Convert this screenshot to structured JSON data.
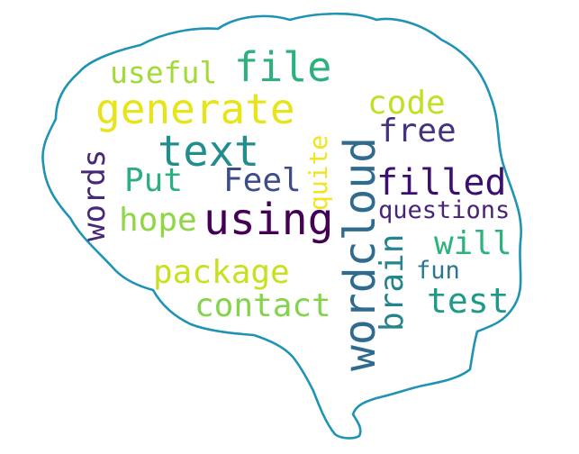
{
  "outline_color": "#1f93b5",
  "words": [
    {
      "text": "useful",
      "color": "#a2da37"
    },
    {
      "text": "file",
      "color": "#2cb17e"
    },
    {
      "text": "generate",
      "color": "#e7e419"
    },
    {
      "text": "code",
      "color": "#c2df23"
    },
    {
      "text": "text",
      "color": "#218e8d"
    },
    {
      "text": "free",
      "color": "#46337e"
    },
    {
      "text": "wordcloud",
      "color": "#2f6b8e"
    },
    {
      "text": "quite",
      "color": "#f1e51d"
    },
    {
      "text": "words",
      "color": "#482878"
    },
    {
      "text": "Put",
      "color": "#2ab07f"
    },
    {
      "text": "Feel",
      "color": "#3e4c8a"
    },
    {
      "text": "filled",
      "color": "#3b0f70"
    },
    {
      "text": "hope",
      "color": "#8fd744"
    },
    {
      "text": "using",
      "color": "#440154"
    },
    {
      "text": "questions",
      "color": "#482475"
    },
    {
      "text": "brain",
      "color": "#25858e"
    },
    {
      "text": "will",
      "color": "#2db27d"
    },
    {
      "text": "package",
      "color": "#c8e020"
    },
    {
      "text": "fun",
      "color": "#2a788e"
    },
    {
      "text": "contact",
      "color": "#84d44b"
    },
    {
      "text": "test",
      "color": "#1f9a8a"
    }
  ]
}
